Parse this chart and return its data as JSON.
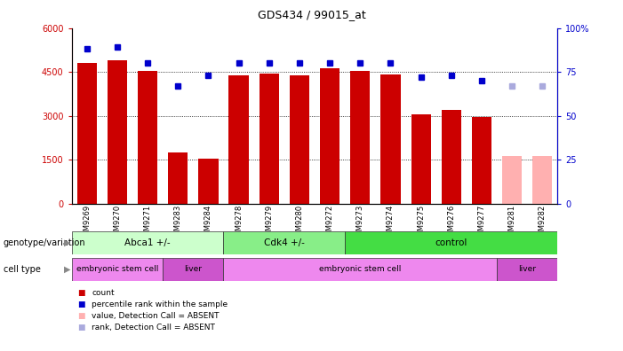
{
  "title": "GDS434 / 99015_at",
  "samples": [
    "GSM9269",
    "GSM9270",
    "GSM9271",
    "GSM9283",
    "GSM9284",
    "GSM9278",
    "GSM9279",
    "GSM9280",
    "GSM9272",
    "GSM9273",
    "GSM9274",
    "GSM9275",
    "GSM9276",
    "GSM9277",
    "GSM9281",
    "GSM9282"
  ],
  "counts": [
    4800,
    4900,
    4530,
    1750,
    1530,
    4380,
    4460,
    4380,
    4620,
    4530,
    4420,
    3060,
    3200,
    2950,
    null,
    null
  ],
  "absent_counts": [
    null,
    null,
    null,
    null,
    null,
    null,
    null,
    null,
    null,
    null,
    null,
    null,
    null,
    null,
    1620,
    1630
  ],
  "ranks": [
    88,
    89,
    80,
    67,
    73,
    80,
    80,
    80,
    80,
    80,
    80,
    72,
    73,
    70,
    null,
    null
  ],
  "absent_ranks": [
    null,
    null,
    null,
    null,
    null,
    null,
    null,
    null,
    null,
    null,
    null,
    null,
    null,
    null,
    67,
    67
  ],
  "ylim_left": [
    0,
    6000
  ],
  "ylim_right": [
    0,
    100
  ],
  "yticks_left": [
    0,
    1500,
    3000,
    4500,
    6000
  ],
  "ytick_labels_left": [
    "0",
    "1500",
    "3000",
    "4500",
    "6000"
  ],
  "yticks_right": [
    0,
    25,
    50,
    75,
    100
  ],
  "ytick_labels_right": [
    "0",
    "25",
    "50",
    "75",
    "100%"
  ],
  "bar_color": "#cc0000",
  "absent_bar_color": "#ffb0b0",
  "rank_color": "#0000cc",
  "absent_rank_color": "#aaaadd",
  "genotype_groups": [
    {
      "label": "Abca1 +/-",
      "start": 0,
      "end": 5,
      "color": "#ccffcc"
    },
    {
      "label": "Cdk4 +/-",
      "start": 5,
      "end": 9,
      "color": "#88ee88"
    },
    {
      "label": "control",
      "start": 9,
      "end": 16,
      "color": "#44dd44"
    }
  ],
  "celltype_groups": [
    {
      "label": "embryonic stem cell",
      "start": 0,
      "end": 3,
      "color": "#ee88ee"
    },
    {
      "label": "liver",
      "start": 3,
      "end": 5,
      "color": "#cc55cc"
    },
    {
      "label": "embryonic stem cell",
      "start": 5,
      "end": 14,
      "color": "#ee88ee"
    },
    {
      "label": "liver",
      "start": 14,
      "end": 16,
      "color": "#cc55cc"
    }
  ],
  "legend_items": [
    {
      "label": "count",
      "color": "#cc0000"
    },
    {
      "label": "percentile rank within the sample",
      "color": "#0000cc"
    },
    {
      "label": "value, Detection Call = ABSENT",
      "color": "#ffb0b0"
    },
    {
      "label": "rank, Detection Call = ABSENT",
      "color": "#aaaadd"
    }
  ],
  "genotype_label": "genotype/variation",
  "celltype_label": "cell type"
}
